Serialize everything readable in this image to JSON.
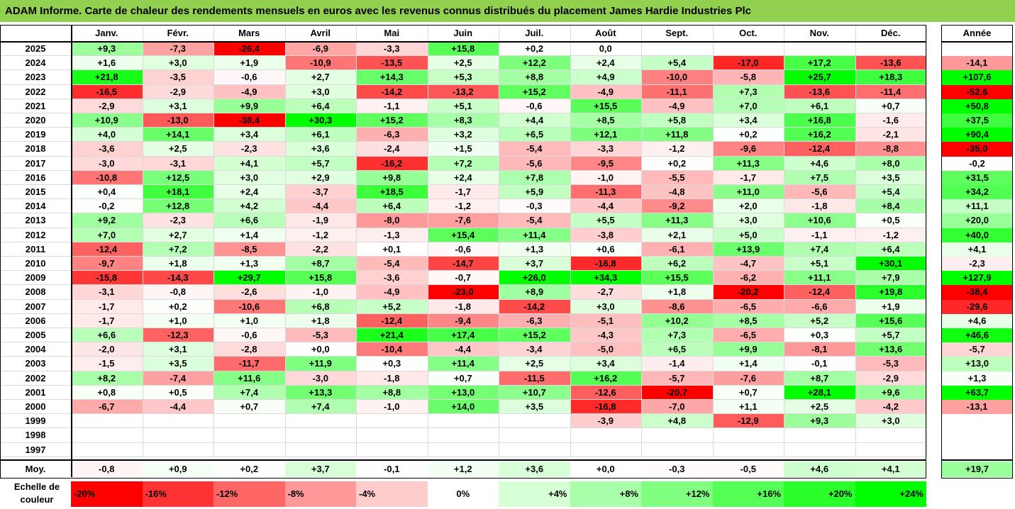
{
  "title": "ADAM Informe. Carte de chaleur des rendements mensuels en euros avec les revenus connus distribués du placement James Hardie Industries Plc",
  "chart_data": {
    "type": "heatmap",
    "months": [
      "Janv.",
      "Févr.",
      "Mars",
      "Avril",
      "Mai",
      "Juin",
      "Juil.",
      "Août",
      "Sept.",
      "Oct.",
      "Nov.",
      "Déc."
    ],
    "year_header": "Année",
    "rows": [
      {
        "year": "2025",
        "values": [
          "+9,3",
          "-7,3",
          "-26,4",
          "-6,9",
          "-3,3",
          "+15,8",
          "+0,2",
          "0,0",
          "",
          "",
          "",
          ""
        ],
        "annual": ""
      },
      {
        "year": "2024",
        "values": [
          "+1,6",
          "+3,0",
          "+1,9",
          "-10,9",
          "-13,5",
          "+2,5",
          "+12,2",
          "+2,4",
          "+5,4",
          "-17,0",
          "+17,2",
          "-13,6"
        ],
        "annual": "-14,1"
      },
      {
        "year": "2023",
        "values": [
          "+21,8",
          "-3,5",
          "-0,6",
          "+2,7",
          "+14,3",
          "+5,3",
          "+8,8",
          "+4,9",
          "-10,0",
          "-5,8",
          "+25,7",
          "+18,3"
        ],
        "annual": "+107,6"
      },
      {
        "year": "2022",
        "values": [
          "-16,5",
          "-2,9",
          "-4,9",
          "+3,0",
          "-14,2",
          "-13,2",
          "+15,2",
          "-4,9",
          "-11,1",
          "+7,3",
          "-13,6",
          "-11,4"
        ],
        "annual": "-52,6"
      },
      {
        "year": "2021",
        "values": [
          "-2,9",
          "+3,1",
          "+9,9",
          "+6,4",
          "-1,1",
          "+5,1",
          "-0,6",
          "+15,5",
          "-4,9",
          "+7,0",
          "+6,1",
          "+0,7"
        ],
        "annual": "+50,8"
      },
      {
        "year": "2020",
        "values": [
          "+10,9",
          "-13,0",
          "-38,4",
          "+30,3",
          "+15,2",
          "+8,3",
          "+4,4",
          "+8,5",
          "+5,8",
          "+3,4",
          "+16,8",
          "-1,6"
        ],
        "annual": "+37,5"
      },
      {
        "year": "2019",
        "values": [
          "+4,0",
          "+14,1",
          "+3,4",
          "+6,1",
          "-6,3",
          "+3,2",
          "+6,5",
          "+12,1",
          "+11,8",
          "+0,2",
          "+16,2",
          "-2,1"
        ],
        "annual": "+90,4"
      },
      {
        "year": "2018",
        "values": [
          "-3,6",
          "+2,5",
          "-2,3",
          "+3,6",
          "-2,4",
          "+1,5",
          "-5,4",
          "-3,3",
          "-1,2",
          "-9,6",
          "-12,4",
          "-8,8"
        ],
        "annual": "-35,0"
      },
      {
        "year": "2017",
        "values": [
          "-3,0",
          "-3,1",
          "+4,1",
          "+5,7",
          "-16,2",
          "+7,2",
          "-5,6",
          "-9,5",
          "+0,2",
          "+11,3",
          "+4,6",
          "+8,0"
        ],
        "annual": "-0,2"
      },
      {
        "year": "2016",
        "values": [
          "-10,8",
          "+12,5",
          "+3,0",
          "+2,9",
          "+9,8",
          "+2,4",
          "+7,8",
          "-1,0",
          "-5,5",
          "-1,7",
          "+7,5",
          "+3,5"
        ],
        "annual": "+31,5"
      },
      {
        "year": "2015",
        "values": [
          "+0,4",
          "+18,1",
          "+2,4",
          "-3,7",
          "+18,5",
          "-1,7",
          "+5,9",
          "-11,3",
          "-4,8",
          "+11,0",
          "-5,6",
          "+5,4"
        ],
        "annual": "+34,2"
      },
      {
        "year": "2014",
        "values": [
          "-0,2",
          "+12,8",
          "+4,2",
          "-4,4",
          "+6,4",
          "-1,2",
          "-0,3",
          "-4,4",
          "-9,2",
          "+2,0",
          "-1,8",
          "+8,4"
        ],
        "annual": "+11,1"
      },
      {
        "year": "2013",
        "values": [
          "+9,2",
          "-2,3",
          "+6,6",
          "-1,9",
          "-8,0",
          "-7,6",
          "-5,4",
          "+5,5",
          "+11,3",
          "+3,0",
          "+10,6",
          "+0,5"
        ],
        "annual": "+20,0"
      },
      {
        "year": "2012",
        "values": [
          "+7,0",
          "+2,7",
          "+1,4",
          "-1,2",
          "-1,3",
          "+15,4",
          "+11,4",
          "-3,8",
          "+2,1",
          "+5,0",
          "-1,1",
          "-1,2"
        ],
        "annual": "+40,0"
      },
      {
        "year": "2011",
        "values": [
          "-12,4",
          "+7,2",
          "-8,5",
          "-2,2",
          "+0,1",
          "-0,6",
          "+1,3",
          "+0,6",
          "-6,1",
          "+13,9",
          "+7,4",
          "+6,4"
        ],
        "annual": "+4,1"
      },
      {
        "year": "2010",
        "values": [
          "-9,7",
          "+1,8",
          "+1,3",
          "+8,7",
          "-5,4",
          "-14,7",
          "+3,7",
          "-16,8",
          "+6,2",
          "-4,7",
          "+5,1",
          "+30,1"
        ],
        "annual": "-2,3"
      },
      {
        "year": "2009",
        "values": [
          "-15,8",
          "-14,3",
          "+29,7",
          "+15,8",
          "-3,6",
          "-0,7",
          "+26,0",
          "+34,3",
          "+15,5",
          "-6,2",
          "+11,1",
          "+7,9"
        ],
        "annual": "+127,9"
      },
      {
        "year": "2008",
        "values": [
          "-3,1",
          "-0,8",
          "-2,6",
          "-1,0",
          "-4,9",
          "-23,0",
          "+8,9",
          "-2,7",
          "+1,8",
          "-20,2",
          "-12,4",
          "+19,8"
        ],
        "annual": "-38,4"
      },
      {
        "year": "2007",
        "values": [
          "-1,7",
          "+0,2",
          "-10,6",
          "+6,8",
          "+5,2",
          "-1,8",
          "-14,2",
          "+3,0",
          "-8,6",
          "-6,5",
          "-6,6",
          "+1,9"
        ],
        "annual": "-29,6"
      },
      {
        "year": "2006",
        "values": [
          "-1,7",
          "+1,0",
          "+1,0",
          "+1,8",
          "-12,4",
          "-9,4",
          "-6,3",
          "-5,1",
          "+10,2",
          "+8,5",
          "+5,2",
          "+15,6"
        ],
        "annual": "+4,6"
      },
      {
        "year": "2005",
        "values": [
          "+6,6",
          "-12,3",
          "-0,6",
          "-5,3",
          "+21,4",
          "+17,4",
          "+15,2",
          "-4,3",
          "+7,3",
          "-6,5",
          "+0,3",
          "+5,7"
        ],
        "annual": "+46,6"
      },
      {
        "year": "2004",
        "values": [
          "-2,0",
          "+3,1",
          "-2,8",
          "+0,0",
          "-10,4",
          "-4,4",
          "-3,4",
          "-5,0",
          "+6,5",
          "+9,9",
          "-8,1",
          "+13,6"
        ],
        "annual": "-5,7"
      },
      {
        "year": "2003",
        "values": [
          "-1,5",
          "+3,5",
          "-11,7",
          "+11,9",
          "+0,3",
          "+11,4",
          "+2,5",
          "+3,4",
          "-1,4",
          "+1,4",
          "-0,1",
          "-5,3"
        ],
        "annual": "+13,0"
      },
      {
        "year": "2002",
        "values": [
          "+8,2",
          "-7,4",
          "+11,6",
          "-3,0",
          "-1,8",
          "+0,7",
          "-11,5",
          "+16,2",
          "-5,7",
          "-7,6",
          "+8,7",
          "-2,9"
        ],
        "annual": "+1,3"
      },
      {
        "year": "2001",
        "values": [
          "+0,8",
          "+0,5",
          "+7,4",
          "+13,3",
          "+8,8",
          "+13,0",
          "+10,7",
          "-12,6",
          "-20,7",
          "+0,7",
          "+28,1",
          "+9,6"
        ],
        "annual": "+63,7"
      },
      {
        "year": "2000",
        "values": [
          "-6,7",
          "-4,4",
          "+0,7",
          "+7,4",
          "-1,0",
          "+14,0",
          "+3,5",
          "-16,8",
          "-7,0",
          "+1,1",
          "+2,5",
          "-4,2"
        ],
        "annual": "-13,1"
      },
      {
        "year": "1999",
        "values": [
          "",
          "",
          "",
          "",
          "",
          "",
          "",
          "-3,9",
          "+4,8",
          "-12,9",
          "+9,3",
          "+3,0"
        ],
        "annual": ""
      },
      {
        "year": "1998",
        "values": [
          "",
          "",
          "",
          "",
          "",
          "",
          "",
          "",
          "",
          "",
          "",
          ""
        ],
        "annual": ""
      },
      {
        "year": "1997",
        "values": [
          "",
          "",
          "",
          "",
          "",
          "",
          "",
          "",
          "",
          "",
          "",
          ""
        ],
        "annual": ""
      }
    ],
    "average": {
      "label": "Moy.",
      "values": [
        "-0,8",
        "+0,9",
        "+0,2",
        "+3,7",
        "-0,1",
        "+1,2",
        "+3,6",
        "+0,0",
        "-0,3",
        "-0,5",
        "+4,6",
        "+4,1"
      ],
      "annual": "+19,7"
    },
    "color_scale": {
      "label": "Echelle de couleur",
      "steps": [
        "-20%",
        "-16%",
        "-12%",
        "-8%",
        "-4%",
        "0%",
        "+4%",
        "+8%",
        "+12%",
        "+16%",
        "+20%",
        "+24%"
      ],
      "step_values": [
        -20,
        -16,
        -12,
        -8,
        -4,
        0,
        4,
        8,
        12,
        16,
        20,
        24
      ]
    },
    "colors": {
      "negative_max": "#ff0000",
      "neutral": "#ffffff",
      "positive_max": "#00ff00",
      "title_bar": "#92d050"
    }
  }
}
